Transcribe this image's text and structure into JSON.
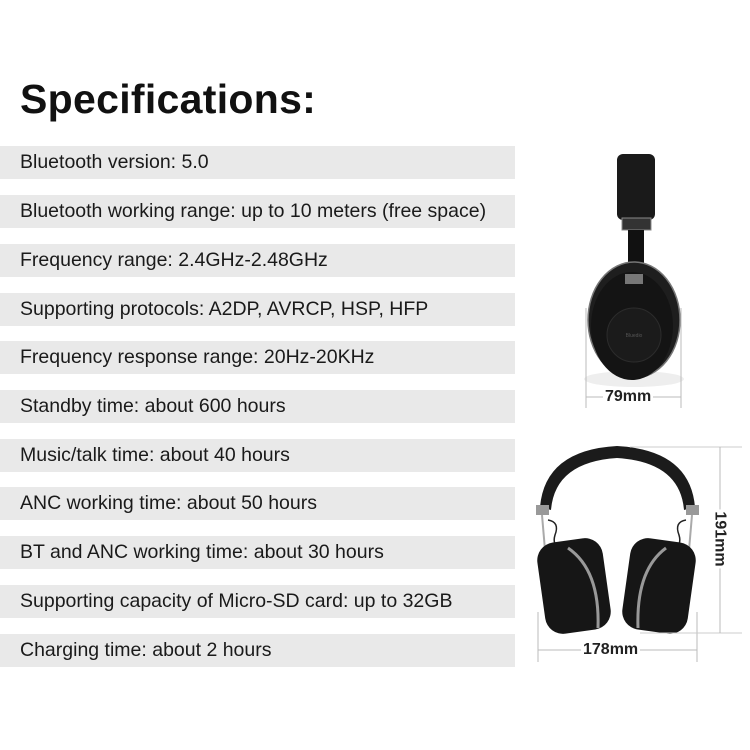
{
  "title": "Specifications:",
  "specs": [
    "Bluetooth version: 5.0",
    "Bluetooth working range: up to 10 meters (free space)",
    "Frequency range: 2.4GHz-2.48GHz",
    "Supporting protocols: A2DP, AVRCP, HSP, HFP",
    "Frequency response range: 20Hz-20KHz",
    "Standby time: about 600 hours",
    "Music/talk time: about 40 hours",
    "ANC working time: about 50 hours",
    "BT and ANC working time: about 30 hours",
    "Supporting capacity of Micro-SD card: up to 32GB",
    "Charging time: about 2 hours"
  ],
  "dimensions": {
    "depth": "79mm",
    "width": "178mm",
    "height": "191mm"
  },
  "brand_logo": "Bluedio",
  "colors": {
    "row_bg": "#e9e9e9",
    "product": "#151515"
  }
}
